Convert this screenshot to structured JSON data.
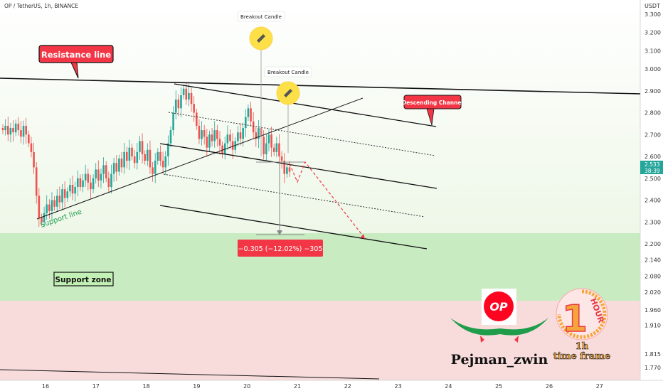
{
  "header": {
    "symbol_line": "OP / TetherUS, 1h, BINANCE"
  },
  "price_axis": {
    "currency": "USDT",
    "ticks": [
      "3.300",
      "3.200",
      "3.100",
      "3.000",
      "2.900",
      "2.800",
      "2.700",
      "2.600",
      "2.500",
      "2.400",
      "2.300",
      "2.200",
      "2.140",
      "2.080",
      "2.020",
      "1.960",
      "1.910",
      "1.815",
      "1.770"
    ],
    "last_price": "2.533",
    "countdown": "38:39"
  },
  "time_axis": {
    "ticks": [
      "16",
      "17",
      "18",
      "19",
      "20",
      "21",
      "22",
      "23",
      "24",
      "25",
      "26",
      "27"
    ]
  },
  "annotations": {
    "resistance": "Resistance line",
    "support_line": "Support line",
    "support_zone": "Support zone",
    "descending_channel": "Descending Channel",
    "breakout_1": "Breakout Candle",
    "breakout_2": "Breakout Candle",
    "measure": "−0.305 (−12.02%) −305"
  },
  "branding": {
    "logo_text": "OP",
    "author": "Pejman_zwin",
    "badge_number": "1",
    "badge_word": "HOUR",
    "timeframe_top": "1h",
    "timeframe_bottom": "time frame"
  },
  "colors": {
    "up": "#26a69a",
    "down": "#ef5350",
    "support_zone": "#c8ebc2",
    "resistance_zone": "#f8dcdc",
    "label_red": "#f23645",
    "label_green": "#1f9d4b"
  },
  "chart_data": {
    "type": "candlestick",
    "symbol": "OP / TetherUS",
    "interval": "1h",
    "exchange": "BINANCE",
    "x_tick_labels": [
      "16",
      "17",
      "18",
      "19",
      "20",
      "21",
      "22",
      "23",
      "24",
      "25",
      "26",
      "27"
    ],
    "y_range": [
      1.75,
      3.35
    ],
    "last_price": 2.533,
    "support_zone": [
      2.02,
      2.23
    ],
    "closes": [
      2.72,
      2.74,
      2.7,
      2.73,
      2.71,
      2.75,
      2.72,
      2.69,
      2.74,
      2.7,
      2.66,
      2.62,
      2.55,
      2.42,
      2.32,
      2.3,
      2.34,
      2.38,
      2.35,
      2.4,
      2.37,
      2.42,
      2.39,
      2.45,
      2.41,
      2.44,
      2.47,
      2.43,
      2.46,
      2.5,
      2.46,
      2.49,
      2.52,
      2.48,
      2.45,
      2.5,
      2.54,
      2.49,
      2.52,
      2.56,
      2.5,
      2.46,
      2.52,
      2.57,
      2.53,
      2.59,
      2.55,
      2.62,
      2.58,
      2.64,
      2.6,
      2.57,
      2.62,
      2.67,
      2.61,
      2.58,
      2.63,
      2.55,
      2.52,
      2.58,
      2.62,
      2.58,
      2.55,
      2.6,
      2.66,
      2.72,
      2.8,
      2.86,
      2.82,
      2.88,
      2.91,
      2.86,
      2.89,
      2.84,
      2.8,
      2.74,
      2.68,
      2.72,
      2.69,
      2.64,
      2.7,
      2.67,
      2.72,
      2.68,
      2.65,
      2.61,
      2.66,
      2.7,
      2.67,
      2.63,
      2.67,
      2.71,
      2.68,
      2.73,
      2.78,
      2.82,
      2.76,
      2.71,
      2.68,
      2.73,
      2.69,
      2.61,
      2.66,
      2.7,
      2.64,
      2.62,
      2.66,
      2.6,
      2.58,
      2.52,
      2.55,
      2.53
    ]
  }
}
